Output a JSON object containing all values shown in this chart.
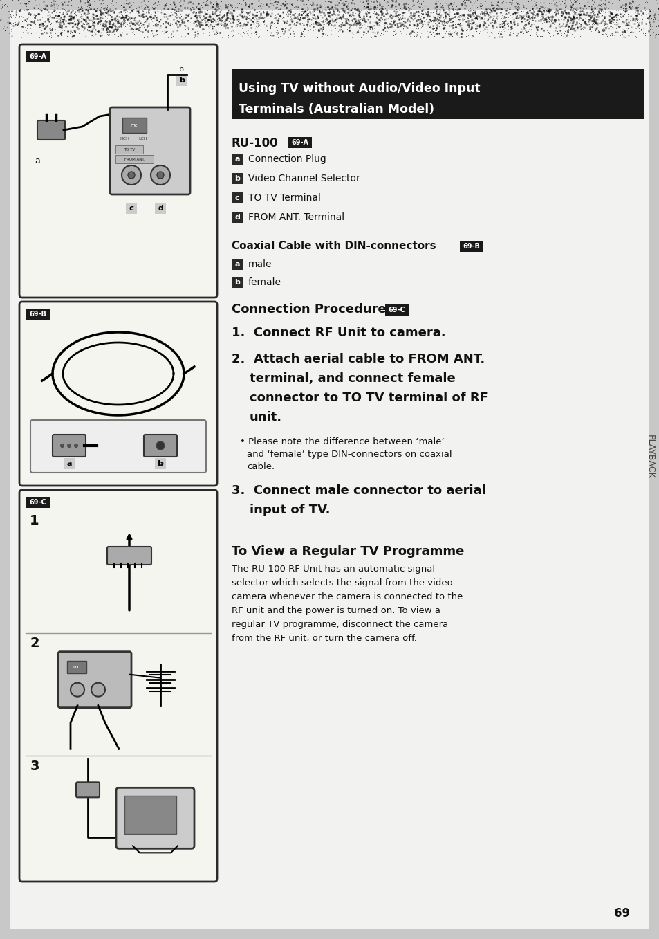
{
  "bg_color": "#c8c8c8",
  "page_bg": "#f2f2f0",
  "title_bg": "#1a1a1a",
  "title_text_1": "Using TV without Audio/Video Input",
  "title_text_2": "Terminals (Australian Model)",
  "title_color": "#ffffff",
  "tag_bg": "#1a1a1a",
  "tag_color": "#ffffff",
  "ru100_label": "RU-100",
  "ru100_tag": "69-A",
  "ru100_items": [
    [
      "a",
      "Connection Plug"
    ],
    [
      "b",
      "Video Channel Selector"
    ],
    [
      "c",
      "TO TV Terminal"
    ],
    [
      "d",
      "FROM ANT. Terminal"
    ]
  ],
  "coax_label": "Coaxial Cable with DIN-connectors",
  "coax_tag": "69-B",
  "coax_items": [
    [
      "a",
      "male"
    ],
    [
      "b",
      "female"
    ]
  ],
  "conn_proc_label": "Connection Procedure",
  "conn_proc_tag": "69-C",
  "step1": "1.  Connect RF Unit to camera.",
  "step2_lines": [
    "2.  Attach aerial cable to FROM ANT.",
    "terminal, and connect female",
    "connector to TO TV terminal of RF",
    "unit."
  ],
  "bullet": "Please note the difference between ‘male’ and ‘female’ type DIN-connectors on coaxial cable.",
  "step3_lines": [
    "3.  Connect male connector to aerial",
    "input of TV."
  ],
  "view_title": "To View a Regular TV Programme",
  "view_body_lines": [
    "The RU-100 RF Unit has an automatic signal",
    "selector which selects the signal from the video",
    "camera whenever the camera is connected to the",
    "RF unit and the power is turned on. To view a",
    "regular TV programme, disconnect the camera",
    "from the RF unit, or turn the camera off."
  ],
  "playback_text": "PLAYBACK",
  "page_num": "69",
  "box_A_tag": "69-A",
  "box_B_tag": "69-B",
  "box_C_tag": "69-C"
}
